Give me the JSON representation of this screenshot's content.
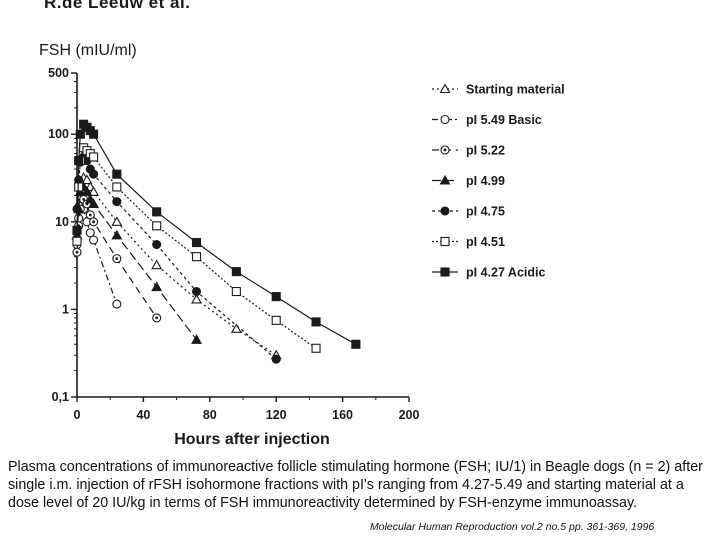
{
  "header": {
    "author": "R.de Leeuw et al."
  },
  "chart_data": {
    "type": "line",
    "ylabel": "FSH (mIU/ml)",
    "xlabel": "Hours after injection",
    "y_scale": "log",
    "ylim": [
      0.1,
      500
    ],
    "xlim": [
      0,
      200
    ],
    "x_ticks": [
      0,
      40,
      80,
      120,
      160,
      200
    ],
    "x_tick_labels": [
      "0",
      "40",
      "80",
      "120",
      "160",
      "200"
    ],
    "y_ticks": [
      0.1,
      1,
      10,
      100,
      500
    ],
    "y_tick_labels": [
      "0,1",
      "1",
      "10",
      "100",
      "500"
    ],
    "grid": false,
    "legend_position": "right",
    "series": [
      {
        "name": "Starting material",
        "marker": "triangle-open",
        "dash": "2,3",
        "x": [
          0,
          1,
          2,
          4,
          6,
          8,
          10,
          24,
          48,
          72,
          96,
          120
        ],
        "y": [
          7,
          16,
          25,
          32,
          30,
          25,
          22,
          10,
          3.2,
          1.3,
          0.6,
          0.3
        ]
      },
      {
        "name": "pI 5.49 Basic",
        "marker": "circle-open",
        "dash": "6,3,2,3",
        "x": [
          0,
          1,
          2,
          4,
          6,
          8,
          10,
          24
        ],
        "y": [
          5.5,
          11,
          15,
          14,
          10,
          7.5,
          6.2,
          1.15
        ]
      },
      {
        "name": "pI 5.22",
        "marker": "circle-dot",
        "dash": "7,5",
        "x": [
          0,
          1,
          2,
          4,
          6,
          8,
          10,
          24,
          48
        ],
        "y": [
          4.5,
          9,
          14,
          18,
          16,
          12,
          10,
          3.8,
          0.8
        ]
      },
      {
        "name": "pI 4.99",
        "marker": "triangle-filled",
        "dash": "9,4",
        "x": [
          0,
          1,
          2,
          4,
          6,
          8,
          10,
          24,
          48,
          72
        ],
        "y": [
          7,
          14,
          22,
          25,
          22,
          18,
          16,
          7,
          1.8,
          0.45
        ]
      },
      {
        "name": "pI 4.75",
        "marker": "circle-filled",
        "dash": "3,3",
        "x": [
          0,
          1,
          2,
          4,
          6,
          8,
          10,
          24,
          48,
          72,
          120
        ],
        "y": [
          14,
          30,
          48,
          55,
          50,
          40,
          35,
          17,
          5.5,
          1.6,
          0.27
        ]
      },
      {
        "name": "pI 4.51",
        "marker": "square-open",
        "dash": "2,2",
        "x": [
          0,
          1,
          2,
          4,
          6,
          8,
          10,
          24,
          48,
          72,
          96,
          120,
          144
        ],
        "y": [
          6,
          25,
          50,
          70,
          65,
          60,
          55,
          25,
          9,
          4,
          1.6,
          0.75,
          0.36
        ]
      },
      {
        "name": "pI 4.27 Acidic",
        "marker": "square-filled",
        "dash": "",
        "x": [
          0,
          1,
          2,
          4,
          6,
          8,
          10,
          24,
          48,
          72,
          96,
          120,
          144,
          168
        ],
        "y": [
          8,
          50,
          100,
          130,
          120,
          110,
          100,
          35,
          13,
          5.8,
          2.7,
          1.4,
          0.72,
          0.4
        ]
      }
    ]
  },
  "caption": {
    "text": "Plasma concentrations of immunoreactive follicle stimulating hormone (FSH; IU/1) in Beagle dogs (n = 2) after single i.m. injection of rFSH isohormone fractions with pI's ranging from 4.27-5.49 and starting material at a dose level of 20 IU/kg in terms of FSH immunoreactivity determined by FSH-enzyme immunoassay.",
    "citation": "Molecular Human Reproduction vol.2 no.5 pp. 361-369, 1996"
  }
}
